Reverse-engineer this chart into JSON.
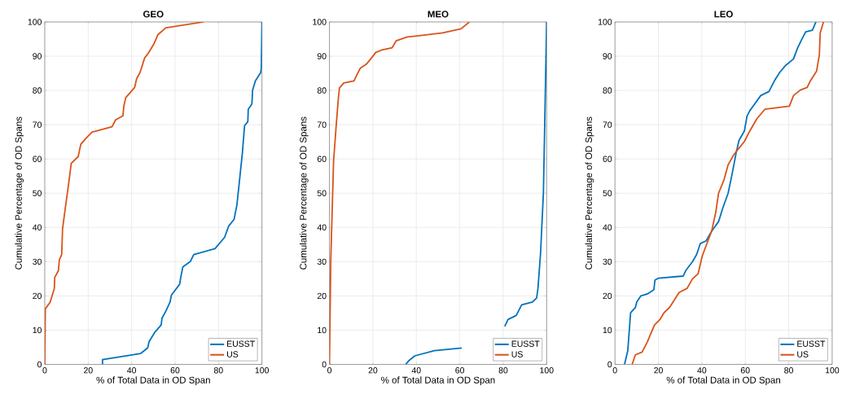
{
  "chart_data": [
    {
      "type": "line",
      "title": "GEO",
      "xlabel": "% of Total Data in OD Span",
      "ylabel": "Cumulative Percentage of OD Spans",
      "xlim": [
        0,
        100
      ],
      "ylim": [
        0,
        100
      ],
      "xticks": [
        0,
        20,
        40,
        60,
        80,
        100
      ],
      "yticks": [
        0,
        10,
        20,
        30,
        40,
        50,
        60,
        70,
        80,
        90,
        100
      ],
      "grid": true,
      "legend": "bottom right",
      "series": [
        {
          "name": "EUSST",
          "color": "#0072bd",
          "x": [
            26.6,
            26.6,
            44.2,
            47.4,
            48,
            50.8,
            53.6,
            54,
            55.8,
            57.7,
            58.3,
            62.1,
            62.7,
            63.6,
            67.1,
            68.6,
            78.4,
            82.8,
            84.7,
            87.2,
            88.5,
            89.7,
            91,
            92,
            93.5,
            93.7,
            95.4,
            95.7,
            97,
            99.4,
            99.7,
            100
          ],
          "values": [
            0,
            1.4,
            3.2,
            4.8,
            6.6,
            9.5,
            11.5,
            13.5,
            15.6,
            18.2,
            20.2,
            23.4,
            25.7,
            28.5,
            30.1,
            32.1,
            33.8,
            37.1,
            40.4,
            42.4,
            46.7,
            53.9,
            61.8,
            69.7,
            70.9,
            74.5,
            76.1,
            80.1,
            82.8,
            85.2,
            86.4,
            100
          ]
        },
        {
          "name": "US",
          "color": "#d95319",
          "x": [
            0,
            0.25,
            2.5,
            4.4,
            4.6,
            6.3,
            6.7,
            7.8,
            8.2,
            9.2,
            10.9,
            12.2,
            15.4,
            16.6,
            18.8,
            21.7,
            31,
            32.6,
            36,
            36.4,
            37.3,
            41.4,
            42.3,
            43.9,
            46,
            47.7,
            50.2,
            52.1,
            55.8,
            73.1
          ],
          "values": [
            0,
            16.2,
            18.2,
            22.2,
            25.4,
            27.4,
            30.5,
            32.1,
            39.6,
            44.4,
            52.3,
            58.7,
            60.7,
            64.3,
            65.9,
            67.8,
            69.4,
            71.4,
            72.6,
            75.4,
            77.9,
            80.9,
            83.4,
            85.3,
            89.5,
            90.9,
            93.5,
            96.3,
            98.3,
            100
          ]
        }
      ]
    },
    {
      "type": "line",
      "title": "MEO",
      "xlabel": "% of Total Data in OD Span",
      "ylabel": "Cumulative Percentage of OD Spans",
      "xlim": [
        0,
        100
      ],
      "ylim": [
        0,
        100
      ],
      "xticks": [
        0,
        20,
        40,
        60,
        80,
        100
      ],
      "yticks": [
        0,
        10,
        20,
        30,
        40,
        50,
        60,
        70,
        80,
        90,
        100
      ],
      "grid": true,
      "legend": "bottom right",
      "series": [
        {
          "name": "EUSST",
          "color": "#0072bd",
          "x": [
            35.1,
            36.4,
            39.3,
            48.3,
            60.9,
            null,
            80.7,
            82.2,
            86,
            88.5,
            93.5,
            95.4,
            96,
            97.2,
            98.5,
            99.1,
            100
          ],
          "values": [
            0,
            1,
            2.5,
            4,
            4.8,
            null,
            11.1,
            13.1,
            14.3,
            17.4,
            18.2,
            19.4,
            22.2,
            32.5,
            49.9,
            69.7,
            100
          ]
        },
        {
          "name": "US",
          "color": "#d95319",
          "x": [
            0,
            0.6,
            1.9,
            3.1,
            4.1,
            4.6,
            6.6,
            11.3,
            12.5,
            14.2,
            16.9,
            19.4,
            21.3,
            24.5,
            28.9,
            30.7,
            35.8,
            52.1,
            60.6,
            64.4
          ],
          "values": [
            0,
            30.1,
            59.4,
            69.7,
            77.7,
            80.7,
            82.2,
            82.8,
            84.4,
            86.5,
            87.6,
            89.5,
            91.1,
            91.9,
            92.5,
            94.5,
            95.6,
            96.8,
            98,
            100
          ]
        }
      ]
    },
    {
      "type": "line",
      "title": "LEO",
      "xlabel": "% of Total Data in OD Span",
      "ylabel": "Cumulative Percentage of OD Spans",
      "xlim": [
        0,
        100
      ],
      "ylim": [
        0,
        100
      ],
      "xticks": [
        0,
        20,
        40,
        60,
        80,
        100
      ],
      "yticks": [
        0,
        10,
        20,
        30,
        40,
        50,
        60,
        70,
        80,
        90,
        100
      ],
      "grid": true,
      "legend": "bottom right",
      "series": [
        {
          "name": "EUSST",
          "color": "#0072bd",
          "x": [
            4.4,
            5,
            5.9,
            7.2,
            9.4,
            10,
            11.9,
            15,
            17.9,
            18.4,
            20.1,
            31.4,
            32.6,
            35.8,
            37.6,
            39.3,
            42,
            44.5,
            47.7,
            49.6,
            52.1,
            53.9,
            55.8,
            57.1,
            59.6,
            60.8,
            62.1,
            63.9,
            67.1,
            70.9,
            73.4,
            75.9,
            78.4,
            82.2,
            84.1,
            86,
            87.8,
            90.9,
            92.5
          ],
          "values": [
            0,
            1.6,
            4,
            15.1,
            16.6,
            18.2,
            20,
            20.6,
            21.8,
            24.6,
            25.2,
            25.8,
            27.4,
            30.1,
            32.1,
            35.3,
            36.1,
            38.9,
            41.7,
            45.6,
            50,
            55.5,
            61.8,
            65.4,
            68.2,
            72.5,
            74.1,
            75.7,
            78.5,
            79.7,
            82.8,
            85.3,
            87.2,
            89.2,
            92.4,
            94.9,
            97.1,
            97.6,
            100
          ]
        },
        {
          "name": "US",
          "color": "#d95319",
          "x": [
            7.9,
            9.4,
            12.5,
            15,
            16.3,
            18.2,
            20.7,
            22.6,
            25.1,
            29.5,
            33.2,
            35.7,
            38.3,
            40.2,
            42.1,
            44.5,
            46.4,
            47.7,
            50.2,
            52.1,
            54.6,
            56.5,
            59.6,
            62.1,
            65.3,
            69,
            80.3,
            82.2,
            85.3,
            88.5,
            89.7,
            91.6,
            92.8,
            94.1,
            94.5,
            96
          ],
          "values": [
            0,
            2.8,
            3.6,
            6.7,
            8.7,
            11.5,
            13.1,
            15.1,
            16.6,
            21,
            22.2,
            25,
            26.5,
            31.7,
            34.9,
            38.9,
            44.4,
            50,
            53.9,
            58.3,
            61.1,
            62.7,
            65.1,
            68.2,
            71.7,
            74.5,
            75.4,
            78.5,
            80.1,
            80.9,
            82.5,
            84.4,
            85.6,
            90.4,
            96.8,
            100
          ]
        }
      ]
    }
  ]
}
